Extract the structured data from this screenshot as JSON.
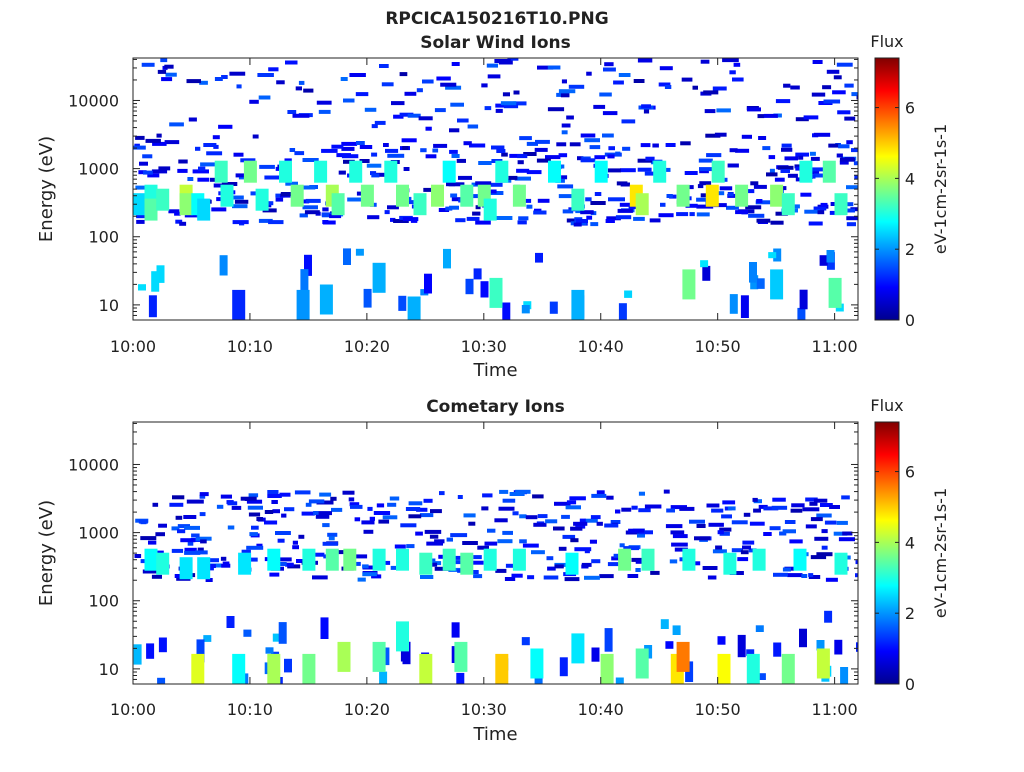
{
  "figure_title": "RPCICA150216T10.PNG",
  "chart_data": [
    {
      "type": "heatmap",
      "title": "Solar Wind Ions",
      "xlabel": "Time",
      "ylabel": "Energy (eV)",
      "x_ticks": [
        "10:00",
        "10:10",
        "10:20",
        "10:30",
        "10:40",
        "10:50",
        "11:00"
      ],
      "y_ticks": [
        "10",
        "100",
        "1000",
        "10000"
      ],
      "y_scale": "log",
      "y_range": [
        6,
        42000
      ],
      "x_range": [
        "10:00",
        "11:02"
      ],
      "colorbar": {
        "title": "Flux",
        "label": "eV-1cm-2sr-1s-1",
        "ticks": [
          "0",
          "2",
          "4",
          "6"
        ],
        "range": [
          0,
          7.4
        ],
        "colormap": "jet"
      },
      "cells": [
        {
          "t": 0.5,
          "e": 300,
          "v": 2.5
        },
        {
          "t": 1.5,
          "e": 400,
          "v": 3.0
        },
        {
          "t": 1.5,
          "e": 250,
          "v": 3.4
        },
        {
          "t": 2.5,
          "e": 350,
          "v": 3.2
        },
        {
          "t": 4.5,
          "e": 400,
          "v": 4.2
        },
        {
          "t": 4.5,
          "e": 300,
          "v": 3.8
        },
        {
          "t": 5.5,
          "e": 300,
          "v": 2.8
        },
        {
          "t": 6.0,
          "e": 250,
          "v": 2.5
        },
        {
          "t": 7.5,
          "e": 900,
          "v": 3.2
        },
        {
          "t": 8.0,
          "e": 400,
          "v": 3.0
        },
        {
          "t": 10.0,
          "e": 900,
          "v": 3.6
        },
        {
          "t": 11.0,
          "e": 350,
          "v": 3.0
        },
        {
          "t": 13.0,
          "e": 900,
          "v": 3.0
        },
        {
          "t": 14.0,
          "e": 400,
          "v": 3.6
        },
        {
          "t": 16.0,
          "e": 900,
          "v": 3.0
        },
        {
          "t": 17.0,
          "e": 400,
          "v": 4.0
        },
        {
          "t": 17.5,
          "e": 300,
          "v": 3.4
        },
        {
          "t": 19.0,
          "e": 900,
          "v": 3.0
        },
        {
          "t": 20.0,
          "e": 400,
          "v": 3.6
        },
        {
          "t": 22.0,
          "e": 900,
          "v": 3.0
        },
        {
          "t": 23.0,
          "e": 400,
          "v": 3.6
        },
        {
          "t": 24.5,
          "e": 300,
          "v": 3.2
        },
        {
          "t": 26.0,
          "e": 400,
          "v": 3.8
        },
        {
          "t": 27.0,
          "e": 900,
          "v": 2.8
        },
        {
          "t": 28.5,
          "e": 400,
          "v": 3.4
        },
        {
          "t": 30.0,
          "e": 400,
          "v": 3.6
        },
        {
          "t": 30.5,
          "e": 250,
          "v": 3.0
        },
        {
          "t": 31.5,
          "e": 900,
          "v": 3.0
        },
        {
          "t": 33.0,
          "e": 400,
          "v": 3.6
        },
        {
          "t": 36.0,
          "e": 900,
          "v": 2.8
        },
        {
          "t": 38.0,
          "e": 350,
          "v": 3.2
        },
        {
          "t": 40.0,
          "e": 900,
          "v": 2.8
        },
        {
          "t": 43.0,
          "e": 400,
          "v": 4.8
        },
        {
          "t": 43.5,
          "e": 300,
          "v": 4.0
        },
        {
          "t": 45.0,
          "e": 900,
          "v": 3.0
        },
        {
          "t": 47.0,
          "e": 400,
          "v": 3.6
        },
        {
          "t": 49.5,
          "e": 400,
          "v": 4.8
        },
        {
          "t": 50.0,
          "e": 900,
          "v": 3.2
        },
        {
          "t": 52.0,
          "e": 400,
          "v": 3.6
        },
        {
          "t": 55.0,
          "e": 400,
          "v": 3.8
        },
        {
          "t": 56.0,
          "e": 300,
          "v": 3.2
        },
        {
          "t": 57.5,
          "e": 900,
          "v": 3.0
        },
        {
          "t": 59.5,
          "e": 900,
          "v": 3.4
        },
        {
          "t": 60.5,
          "e": 300,
          "v": 3.2
        },
        {
          "t": 21.0,
          "e": 25,
          "v": 2.2
        },
        {
          "t": 24.0,
          "e": 8,
          "v": 2.2
        },
        {
          "t": 31.0,
          "e": 15,
          "v": 3.2
        },
        {
          "t": 38.0,
          "e": 10,
          "v": 2.2
        },
        {
          "t": 47.5,
          "e": 20,
          "v": 3.6
        },
        {
          "t": 55.0,
          "e": 20,
          "v": 2.4
        },
        {
          "t": 60.0,
          "e": 15,
          "v": 3.4
        },
        {
          "t": 9.0,
          "e": 10,
          "v": 1.2
        },
        {
          "t": 16.5,
          "e": 12,
          "v": 2.2
        },
        {
          "t": 14.5,
          "e": 10,
          "v": 2.0
        }
      ]
    },
    {
      "type": "heatmap",
      "title": "Cometary Ions",
      "xlabel": "Time",
      "ylabel": "Energy (eV)",
      "x_ticks": [
        "10:00",
        "10:10",
        "10:20",
        "10:30",
        "10:40",
        "10:50",
        "11:00"
      ],
      "y_ticks": [
        "10",
        "100",
        "1000",
        "10000"
      ],
      "y_scale": "log",
      "y_range": [
        6,
        42000
      ],
      "x_range": [
        "10:00",
        "11:02"
      ],
      "colorbar": {
        "title": "Flux",
        "label": "eV-1cm-2sr-1s-1",
        "ticks": [
          "0",
          "2",
          "4",
          "6"
        ],
        "range": [
          0,
          7.4
        ],
        "colormap": "jet"
      },
      "cells": [
        {
          "t": 1.5,
          "e": 400,
          "v": 2.8
        },
        {
          "t": 2.5,
          "e": 350,
          "v": 3.0
        },
        {
          "t": 4.5,
          "e": 300,
          "v": 2.6
        },
        {
          "t": 6.0,
          "e": 300,
          "v": 2.6
        },
        {
          "t": 9.5,
          "e": 350,
          "v": 2.6
        },
        {
          "t": 12.0,
          "e": 400,
          "v": 2.8
        },
        {
          "t": 15.0,
          "e": 400,
          "v": 3.0
        },
        {
          "t": 17.0,
          "e": 400,
          "v": 3.4
        },
        {
          "t": 18.5,
          "e": 400,
          "v": 3.6
        },
        {
          "t": 21.0,
          "e": 400,
          "v": 3.0
        },
        {
          "t": 23.0,
          "e": 400,
          "v": 3.0
        },
        {
          "t": 25.0,
          "e": 350,
          "v": 3.2
        },
        {
          "t": 27.0,
          "e": 400,
          "v": 3.2
        },
        {
          "t": 28.5,
          "e": 350,
          "v": 3.4
        },
        {
          "t": 30.5,
          "e": 400,
          "v": 3.0
        },
        {
          "t": 33.0,
          "e": 400,
          "v": 3.0
        },
        {
          "t": 37.5,
          "e": 350,
          "v": 2.8
        },
        {
          "t": 42.0,
          "e": 400,
          "v": 3.6
        },
        {
          "t": 44.0,
          "e": 400,
          "v": 3.2
        },
        {
          "t": 47.5,
          "e": 400,
          "v": 3.0
        },
        {
          "t": 51.0,
          "e": 350,
          "v": 3.0
        },
        {
          "t": 53.5,
          "e": 400,
          "v": 3.0
        },
        {
          "t": 57.0,
          "e": 400,
          "v": 2.8
        },
        {
          "t": 60.5,
          "e": 350,
          "v": 3.0
        },
        {
          "t": 5.5,
          "e": 10,
          "v": 4.4
        },
        {
          "t": 9.0,
          "e": 10,
          "v": 2.8
        },
        {
          "t": 12.0,
          "e": 10,
          "v": 4.0
        },
        {
          "t": 15.0,
          "e": 10,
          "v": 3.6
        },
        {
          "t": 18.0,
          "e": 15,
          "v": 4.0
        },
        {
          "t": 21.0,
          "e": 15,
          "v": 3.4
        },
        {
          "t": 25.0,
          "e": 10,
          "v": 4.2
        },
        {
          "t": 28.0,
          "e": 15,
          "v": 3.4
        },
        {
          "t": 31.5,
          "e": 10,
          "v": 5.0
        },
        {
          "t": 34.5,
          "e": 12,
          "v": 2.8
        },
        {
          "t": 40.5,
          "e": 10,
          "v": 3.8
        },
        {
          "t": 43.5,
          "e": 12,
          "v": 3.4
        },
        {
          "t": 46.5,
          "e": 10,
          "v": 4.8
        },
        {
          "t": 47.0,
          "e": 15,
          "v": 5.6
        },
        {
          "t": 50.5,
          "e": 10,
          "v": 4.6
        },
        {
          "t": 53.0,
          "e": 10,
          "v": 3.0
        },
        {
          "t": 56.0,
          "e": 10,
          "v": 3.6
        },
        {
          "t": 59.0,
          "e": 12,
          "v": 4.2
        },
        {
          "t": 23.0,
          "e": 30,
          "v": 3.0
        },
        {
          "t": 38.0,
          "e": 20,
          "v": 2.6
        }
      ]
    }
  ]
}
